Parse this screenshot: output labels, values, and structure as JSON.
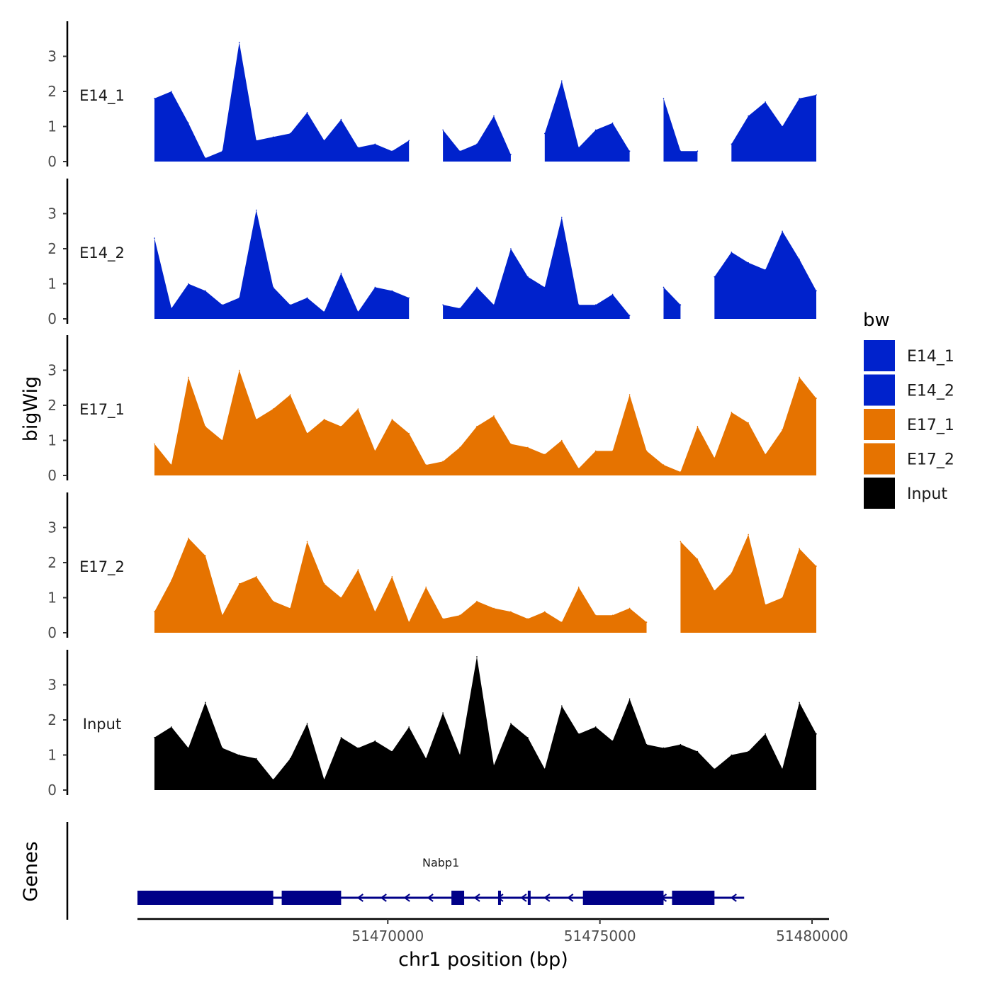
{
  "chart_data": {
    "type": "area",
    "chromosome": "chr1",
    "xlabel": "chr1 position (bp)",
    "ylabel": "bigWig",
    "genes_label": "Genes",
    "xlim": [
      51464100,
      51480400
    ],
    "x_ticks": [
      51470000,
      51475000,
      51480000
    ],
    "x_tick_labels": [
      "51470000",
      "51475000",
      "51480000"
    ],
    "ylim": [
      0,
      4
    ],
    "y_ticks": [
      0,
      1,
      2,
      3
    ],
    "y_tick_labels": [
      "0",
      "1",
      "2",
      "3"
    ],
    "legend": {
      "title": "bw",
      "position": "right",
      "entries": [
        {
          "name": "E14_1",
          "color": "#0022CC"
        },
        {
          "name": "E14_2",
          "color": "#0022CC"
        },
        {
          "name": "E17_1",
          "color": "#E67300"
        },
        {
          "name": "E17_2",
          "color": "#E67300"
        },
        {
          "name": "Input",
          "color": "#000000"
        }
      ]
    },
    "x": [
      51464500,
      51464900,
      51465300,
      51465700,
      51466100,
      51466500,
      51466900,
      51467300,
      51467700,
      51468100,
      51468500,
      51468900,
      51469300,
      51469700,
      51470100,
      51470500,
      51470900,
      51471300,
      51471700,
      51472100,
      51472500,
      51472900,
      51473300,
      51473700,
      51474100,
      51474500,
      51474900,
      51475300,
      51475700,
      51476100,
      51476500,
      51476900,
      51477300,
      51477700,
      51478100,
      51478500,
      51478900,
      51479300,
      51479700,
      51480100
    ],
    "series": [
      {
        "name": "E14_1",
        "color": "#0022CC",
        "values": [
          1.8,
          2.0,
          1.1,
          0.1,
          0.3,
          3.4,
          0.6,
          0.7,
          0.8,
          1.4,
          0.6,
          1.2,
          0.4,
          0.5,
          0.3,
          0.6,
          null,
          0.9,
          0.3,
          0.5,
          1.3,
          0.2,
          null,
          0.8,
          2.3,
          0.4,
          0.9,
          1.1,
          0.3,
          null,
          1.8,
          0.3,
          0.3,
          null,
          0.5,
          1.3,
          1.7,
          1.0,
          1.8,
          1.9
        ]
      },
      {
        "name": "E14_2",
        "color": "#0022CC",
        "values": [
          2.3,
          0.3,
          1.0,
          0.8,
          0.4,
          0.6,
          3.1,
          0.9,
          0.4,
          0.6,
          0.2,
          1.3,
          0.2,
          0.9,
          0.8,
          0.6,
          null,
          0.4,
          0.3,
          0.9,
          0.4,
          2.0,
          1.2,
          0.9,
          2.9,
          0.4,
          0.4,
          0.7,
          0.1,
          null,
          0.9,
          0.4,
          null,
          1.2,
          1.9,
          1.6,
          1.4,
          2.5,
          1.7,
          0.8
        ]
      },
      {
        "name": "E17_1",
        "color": "#E67300",
        "values": [
          0.9,
          0.3,
          2.8,
          1.4,
          1.0,
          3.0,
          1.6,
          1.9,
          2.3,
          1.2,
          1.6,
          1.4,
          1.9,
          0.7,
          1.6,
          1.2,
          0.3,
          0.4,
          0.8,
          1.4,
          1.7,
          0.9,
          0.8,
          0.6,
          1.0,
          0.2,
          0.7,
          0.7,
          2.3,
          0.7,
          0.3,
          0.1,
          1.4,
          0.5,
          1.8,
          1.5,
          0.6,
          1.3,
          2.8,
          2.2
        ]
      },
      {
        "name": "E17_2",
        "color": "#E67300",
        "values": [
          0.6,
          1.5,
          2.7,
          2.2,
          0.5,
          1.4,
          1.6,
          0.9,
          0.7,
          2.6,
          1.4,
          1.0,
          1.8,
          0.6,
          1.6,
          0.3,
          1.3,
          0.4,
          0.5,
          0.9,
          0.7,
          0.6,
          0.4,
          0.6,
          0.3,
          1.3,
          0.5,
          0.5,
          0.7,
          0.3,
          null,
          2.6,
          2.1,
          1.2,
          1.7,
          2.8,
          0.8,
          1.0,
          2.4,
          1.9
        ]
      },
      {
        "name": "Input",
        "color": "#000000",
        "values": [
          1.5,
          1.8,
          1.2,
          2.5,
          1.2,
          1.0,
          0.9,
          0.3,
          0.9,
          1.9,
          0.3,
          1.5,
          1.2,
          1.4,
          1.1,
          1.8,
          0.9,
          2.2,
          1.0,
          3.8,
          0.7,
          1.9,
          1.5,
          0.6,
          2.4,
          1.6,
          1.8,
          1.4,
          2.6,
          1.3,
          1.2,
          1.3,
          1.1,
          0.6,
          1.0,
          1.1,
          1.6,
          0.6,
          2.5,
          1.6
        ]
      }
    ],
    "genes": [
      {
        "name": "Nabp1",
        "start": 51464100,
        "end": 51478400,
        "strand": "-",
        "exons": [
          [
            51464100,
            51467300
          ],
          [
            51467500,
            51468900
          ],
          [
            51471500,
            51471800
          ],
          [
            51474600,
            51476500
          ],
          [
            51476700,
            51477700
          ]
        ],
        "thin_exons": [
          [
            51465500,
            51465600
          ],
          [
            51472600,
            51472650
          ],
          [
            51473300,
            51473350
          ]
        ]
      }
    ]
  }
}
